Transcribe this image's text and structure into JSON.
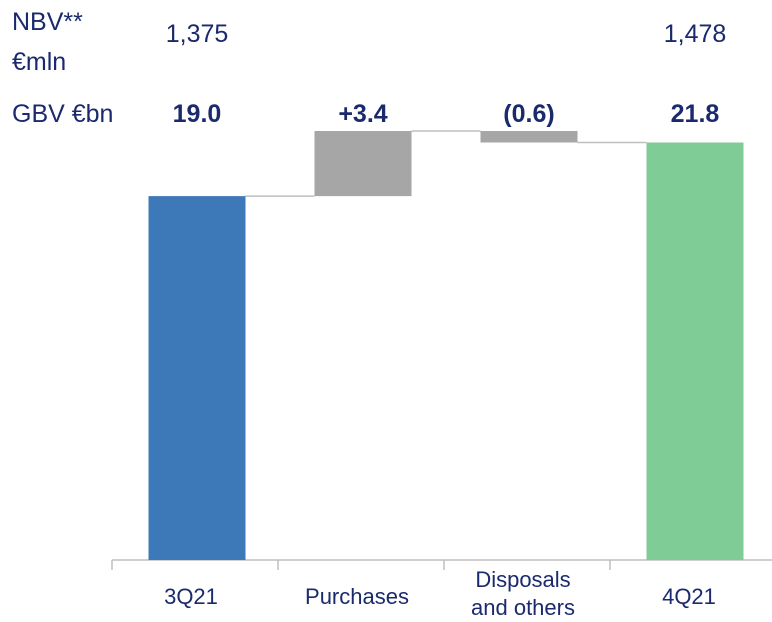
{
  "chart_data": {
    "type": "waterfall",
    "categories": [
      "3Q21",
      "Purchases",
      "Disposals and others",
      "4Q21"
    ],
    "values": [
      19.0,
      3.4,
      -0.6,
      21.8
    ],
    "value_labels": [
      "19.0",
      "+3.4",
      "(0.6)",
      "21.8"
    ],
    "total": [
      true,
      false,
      false,
      true
    ],
    "colors": [
      "#3d78b8",
      "#a6a6a6",
      "#a6a6a6",
      "#80cc96"
    ],
    "row_label": "GBV €bn",
    "nbv": {
      "label": [
        "NBV**",
        "€mln"
      ],
      "values": [
        1375,
        null,
        null,
        1478
      ],
      "value_labels": [
        "1,375",
        null,
        null,
        "1,478"
      ]
    }
  }
}
